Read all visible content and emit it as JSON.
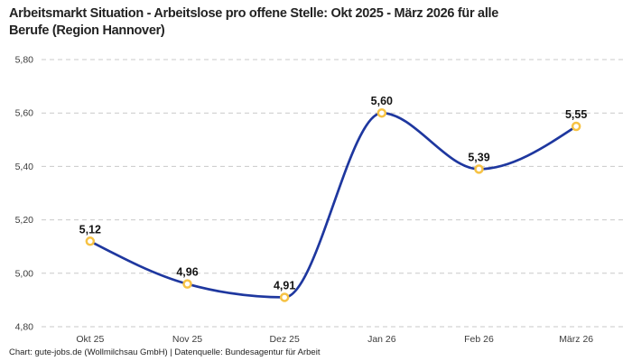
{
  "header": {
    "title_lines": [
      "Arbeitsmarkt Situation - Arbeitslose pro offene Stelle: Okt 2025 - März 2026 für alle",
      "Berufe (Region Hannover)"
    ]
  },
  "footer": {
    "credit": "Chart: gute-jobs.de (Wollmilchsau GmbH) | Datenquelle: Bundesagentur für Arbeit"
  },
  "chart_data": {
    "type": "line",
    "title": "Arbeitsmarkt Situation - Arbeitslose pro offene Stelle: Okt 2025 - März 2026 für alle Berufe (Region Hannover)",
    "categories": [
      "Okt 25",
      "Nov 25",
      "Dez 25",
      "Jan 26",
      "Feb 26",
      "März 26"
    ],
    "values": [
      5.12,
      4.96,
      4.91,
      5.6,
      5.39,
      5.55
    ],
    "value_labels": [
      "5,12",
      "4,96",
      "4,91",
      "5,60",
      "5,39",
      "5,55"
    ],
    "yticks": [
      {
        "label": "5,80",
        "value": 5.8
      },
      {
        "label": "5,60",
        "value": 5.6
      },
      {
        "label": "5,40",
        "value": 5.4
      },
      {
        "label": "5,20",
        "value": 5.2
      },
      {
        "label": "5,00",
        "value": 5.0
      },
      {
        "label": "4,80",
        "value": 4.8
      }
    ],
    "ylim": [
      4.8,
      5.8
    ],
    "xlabel": "",
    "ylabel": "",
    "grid": "horizontal-dashed",
    "legend": "none",
    "curve": "monotone-smooth",
    "line_color": "#1e379f",
    "marker_color": "#f6c244",
    "marker_fill": "#ffffff",
    "grid_color": "#c9c9c9"
  }
}
